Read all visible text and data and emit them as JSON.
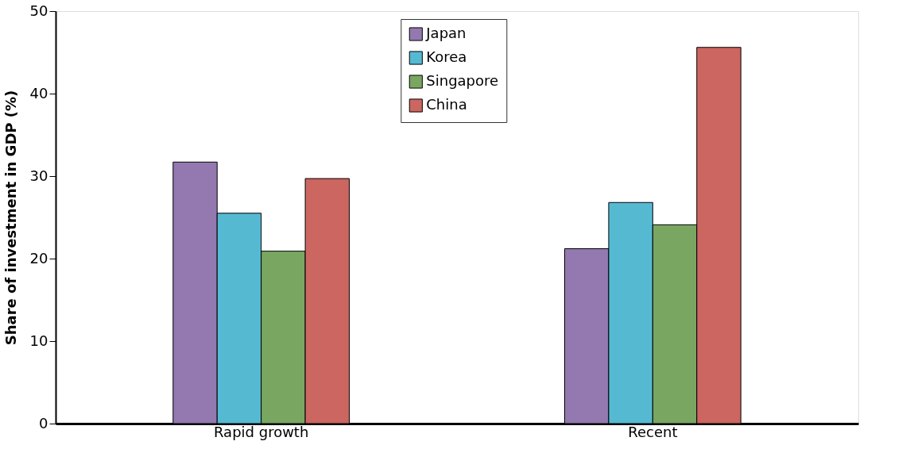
{
  "chart_data": {
    "type": "bar",
    "ylabel": "Share of investment in GDP (%)",
    "categories": [
      "Rapid growth",
      "Recent"
    ],
    "series": [
      {
        "name": "Japan",
        "color": "#9379b0",
        "values": [
          31.7,
          21.2
        ]
      },
      {
        "name": "Korea",
        "color": "#56b9d2",
        "values": [
          25.5,
          26.8
        ]
      },
      {
        "name": "Singapore",
        "color": "#79a762",
        "values": [
          20.9,
          24.1
        ]
      },
      {
        "name": "China",
        "color": "#cc6660",
        "values": [
          29.7,
          45.6
        ]
      }
    ],
    "ylim": [
      0,
      50
    ],
    "yticks": [
      0,
      10,
      20,
      30,
      40,
      50
    ],
    "grid": false,
    "legend": "top"
  }
}
